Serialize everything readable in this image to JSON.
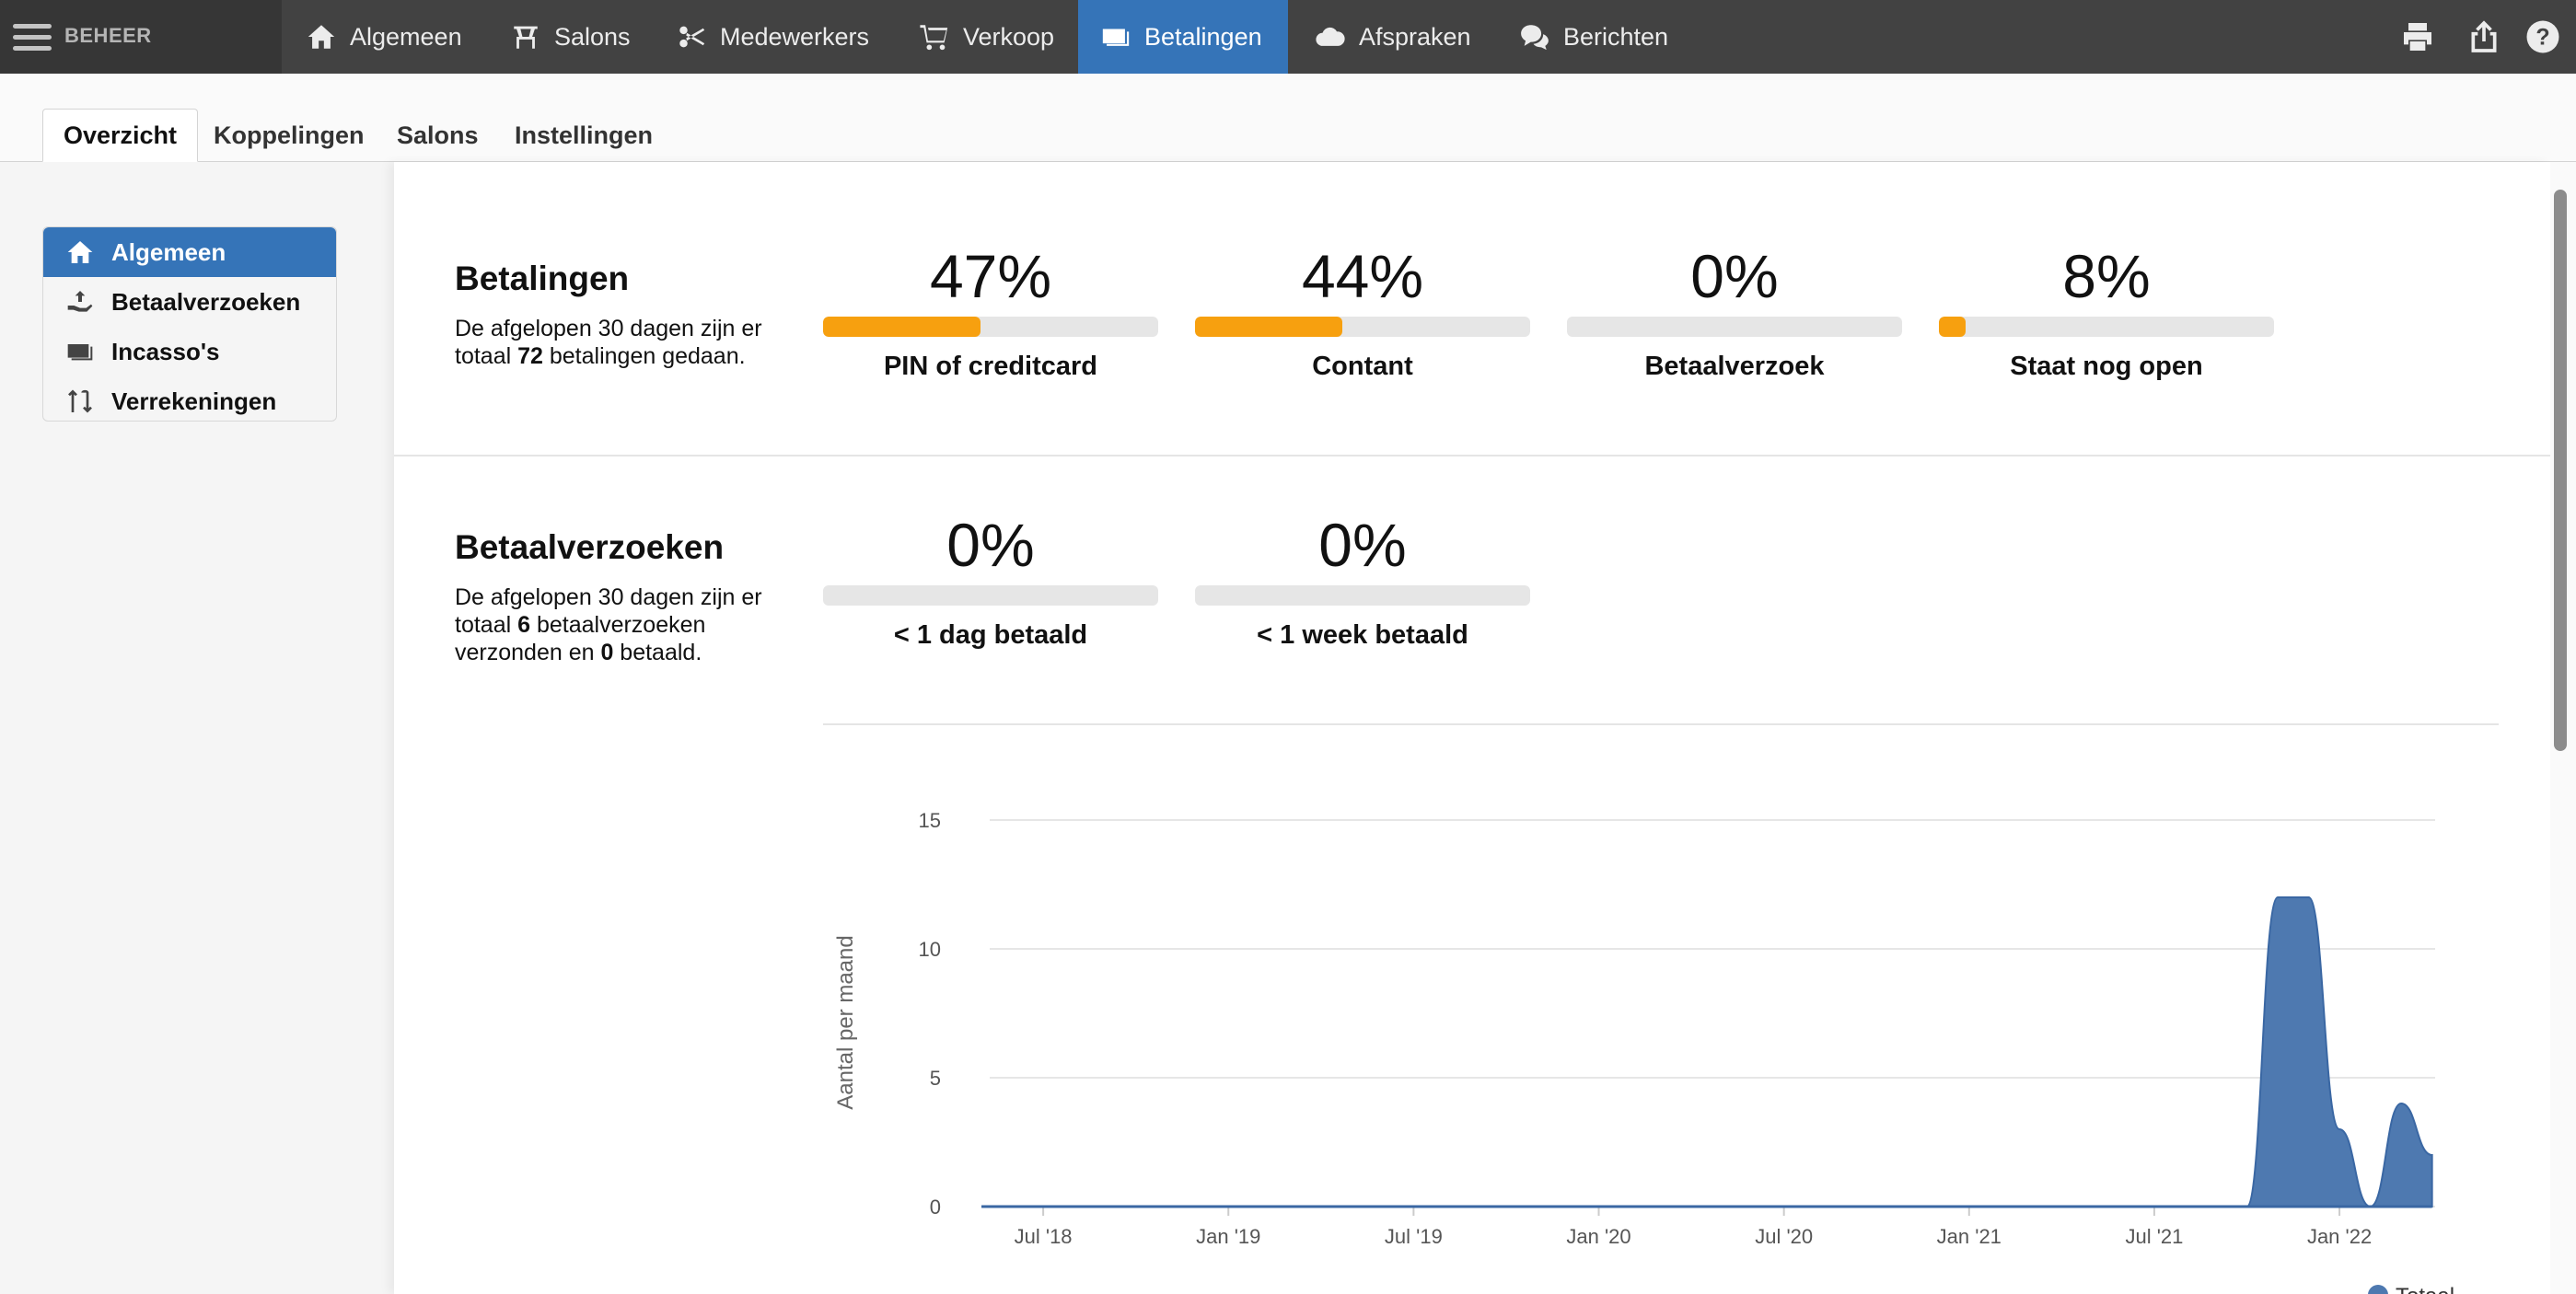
{
  "topnav": {
    "brand": "BEHEER",
    "items": [
      {
        "label": "Algemeen",
        "icon": "home-icon"
      },
      {
        "label": "Salons",
        "icon": "salon-icon"
      },
      {
        "label": "Medewerkers",
        "icon": "scissors-icon"
      },
      {
        "label": "Verkoop",
        "icon": "cart-icon"
      },
      {
        "label": "Betalingen",
        "icon": "payment-card-icon",
        "active": true
      },
      {
        "label": "Afspraken",
        "icon": "cloud-icon"
      },
      {
        "label": "Berichten",
        "icon": "chat-icon"
      }
    ],
    "tools": [
      "print-icon",
      "share-icon",
      "help-icon"
    ]
  },
  "subtabs": [
    {
      "label": "Overzicht",
      "active": true
    },
    {
      "label": "Koppelingen"
    },
    {
      "label": "Salons"
    },
    {
      "label": "Instellingen"
    }
  ],
  "sidebar": {
    "items": [
      {
        "label": "Algemeen",
        "icon": "home-icon",
        "active": true
      },
      {
        "label": "Betaalverzoeken",
        "icon": "hand-money-icon"
      },
      {
        "label": "Incasso's",
        "icon": "card-icon"
      },
      {
        "label": "Verrekeningen",
        "icon": "transfer-icon"
      }
    ]
  },
  "betalingen": {
    "title": "Betalingen",
    "desc_before": "De afgelopen 30 dagen zijn er totaal ",
    "count": "72",
    "desc_after": " betalingen gedaan.",
    "stats": [
      {
        "value": "47%",
        "fraction": 0.47,
        "label": "PIN of creditcard"
      },
      {
        "value": "44%",
        "fraction": 0.44,
        "label": "Contant"
      },
      {
        "value": "0%",
        "fraction": 0.0,
        "label": "Betaalverzoek"
      },
      {
        "value": "8%",
        "fraction": 0.08,
        "label": "Staat nog open"
      }
    ]
  },
  "betaalverzoeken": {
    "title": "Betaalverzoeken",
    "desc_before": "De afgelopen 30 dagen zijn er totaal ",
    "count_sent": "6",
    "desc_mid": " betaalverzoeken verzonden en ",
    "count_paid": "0",
    "desc_after": " betaald.",
    "stats": [
      {
        "value": "0%",
        "fraction": 0.0,
        "label": "< 1 dag betaald"
      },
      {
        "value": "0%",
        "fraction": 0.0,
        "label": "< 1 week betaald"
      }
    ]
  },
  "colors": {
    "nav_bg": "#424242",
    "accent": "#3574b8",
    "progress": "#f7a00f",
    "area": "#4e79b0"
  },
  "chart_data": {
    "type": "area",
    "ylabel": "Aantal per maand",
    "ylim": [
      0,
      15
    ],
    "yticks": [
      0,
      5,
      10,
      15
    ],
    "xticks": [
      "Jul '18",
      "Jan '19",
      "Jul '19",
      "Jan '20",
      "Jul '20",
      "Jan '21",
      "Jul '21",
      "Jan '22"
    ],
    "grid": true,
    "legend_position": "bottom-right",
    "series": [
      {
        "name": "Totaal",
        "x": [
          "2018-05",
          "2018-06",
          "2018-07",
          "2018-08",
          "2018-09",
          "2018-10",
          "2018-11",
          "2018-12",
          "2019-01",
          "2019-02",
          "2019-03",
          "2019-04",
          "2019-05",
          "2019-06",
          "2019-07",
          "2019-08",
          "2019-09",
          "2019-10",
          "2019-11",
          "2019-12",
          "2020-01",
          "2020-02",
          "2020-03",
          "2020-04",
          "2020-05",
          "2020-06",
          "2020-07",
          "2020-08",
          "2020-09",
          "2020-10",
          "2020-11",
          "2020-12",
          "2021-01",
          "2021-02",
          "2021-03",
          "2021-04",
          "2021-05",
          "2021-06",
          "2021-07",
          "2021-08",
          "2021-09",
          "2021-10",
          "2021-11",
          "2021-12",
          "2022-01",
          "2022-02",
          "2022-03",
          "2022-04"
        ],
        "values": [
          0,
          0,
          0,
          0,
          0,
          0,
          0,
          0,
          0,
          0,
          0,
          0,
          0,
          0,
          0,
          0,
          0,
          0,
          0,
          0,
          0,
          0,
          0,
          0,
          0,
          0,
          0,
          0,
          0,
          0,
          0,
          0,
          0,
          0,
          0,
          0,
          0,
          0,
          0,
          0,
          0,
          0,
          12,
          12,
          3,
          0,
          4,
          2
        ]
      }
    ]
  }
}
